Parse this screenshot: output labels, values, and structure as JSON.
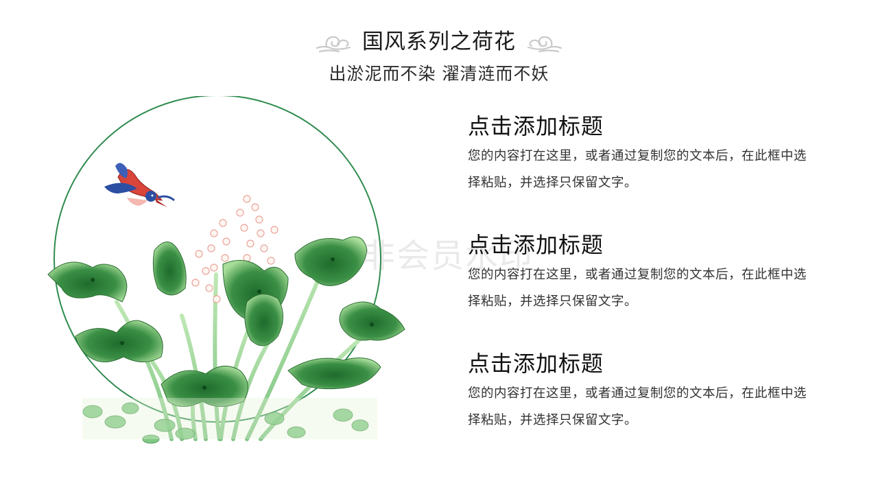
{
  "header": {
    "title": "国风系列之荷花",
    "subtitle": "出淤泥而不染  濯清涟而不妖"
  },
  "watermark": "非会员水印",
  "items": [
    {
      "title": "点击添加标题",
      "body": "您的内容打在这里，或者通过复制您的文本后，在此框中选择粘贴，并选择只保留文字。"
    },
    {
      "title": "点击添加标题",
      "body": "您的内容打在这里，或者通过复制您的文本后，在此框中选择粘贴，并选择只保留文字。"
    },
    {
      "title": "点击添加标题",
      "body": "您的内容打在这里，或者通过复制您的文本后，在此框中选择粘贴，并选择只保留文字。"
    }
  ],
  "colors": {
    "ring": "#2e8b4e",
    "leaf_dark": "#2f7d3a",
    "leaf_light": "#8fd08a",
    "bird_red": "#d9453a",
    "bird_blue": "#2d4fa3"
  }
}
